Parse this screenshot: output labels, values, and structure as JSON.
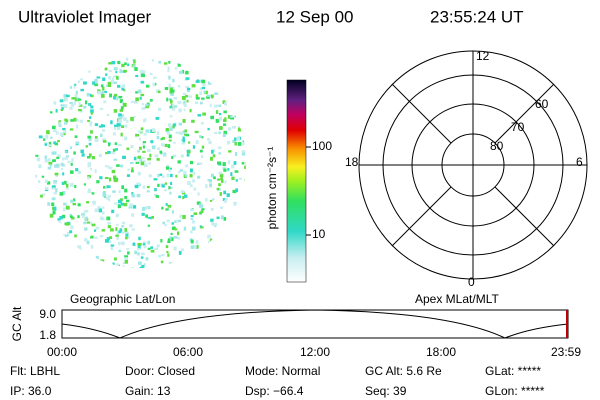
{
  "header": {
    "instrument": "Ultraviolet Imager",
    "date": "12 Sep 00",
    "time": "23:55:24 UT"
  },
  "colorbar": {
    "unit": "photon cm⁻²s⁻¹",
    "ticks": [
      "100",
      "10"
    ]
  },
  "polar": {
    "mlt_labels": [
      "12",
      "6",
      "0",
      "18"
    ],
    "lat_labels": [
      "60",
      "70",
      "80"
    ]
  },
  "map_labels": {
    "left": "Geographic Lat/Lon",
    "right": "Apex MLat/MLT"
  },
  "altitude_plot": {
    "axis_label": "GC Alt",
    "yticks": [
      "9.0",
      "1.8"
    ],
    "xticks": [
      "00:00",
      "06:00",
      "12:00",
      "18:00",
      "23:59"
    ]
  },
  "info": [
    [
      "Flt: LBHL",
      "Door: Closed",
      "Mode: Normal",
      "GC Alt: 5.6 Re",
      "GLat: *****"
    ],
    [
      "IP: 36.0",
      "Gain: 13",
      "Dsp:  −66.4",
      "Seq: 39",
      "GLon: *****"
    ]
  ]
}
